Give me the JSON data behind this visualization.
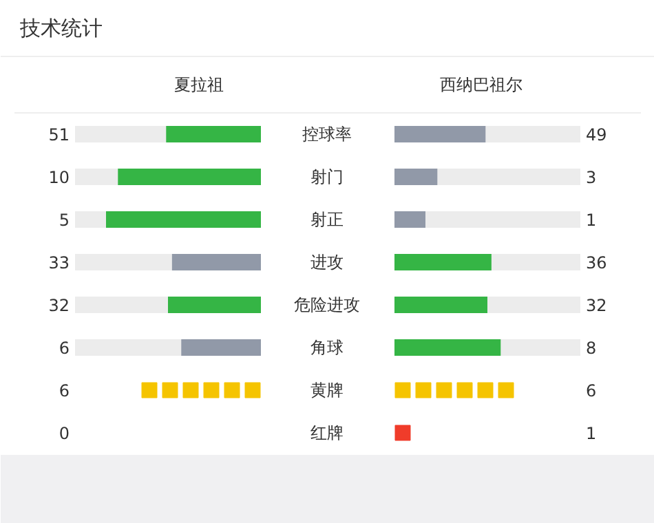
{
  "chart_data": {
    "type": "other",
    "title": "技术统计",
    "data_labels": true,
    "categories": [
      "控球率",
      "射门",
      "射正",
      "进攻",
      "危险进攻",
      "角球",
      "黄牌",
      "红牌"
    ],
    "series": [
      {
        "name": "夏拉祖",
        "type": "bar",
        "values": [
          51,
          10,
          5,
          33,
          32,
          6,
          null,
          null
        ],
        "colors": [
          "#35b545",
          "#35b545",
          "#35b545",
          "#9199a8",
          "#35b545",
          "#9199a8",
          null,
          null
        ]
      },
      {
        "name": "西纳巴祖尔",
        "type": "bar",
        "values": [
          49,
          3,
          1,
          36,
          32,
          8,
          null,
          null
        ],
        "colors": [
          "#9199a8",
          "#9199a8",
          "#9199a8",
          "#35b545",
          "#35b545",
          "#35b545",
          null,
          null
        ]
      },
      {
        "type": "scatter",
        "marker": "square",
        "values": [
          null,
          null,
          null,
          null,
          null,
          null,
          6,
          0
        ],
        "colors": [
          null,
          null,
          null,
          null,
          null,
          null,
          "#f5c400",
          "#f03c2a"
        ]
      },
      {
        "type": "scatter",
        "marker": "square",
        "values": [
          null,
          null,
          null,
          null,
          null,
          null,
          6,
          1
        ],
        "colors": [
          null,
          null,
          null,
          null,
          null,
          null,
          "#f5c400",
          "#f03c2a"
        ]
      }
    ]
  }
}
